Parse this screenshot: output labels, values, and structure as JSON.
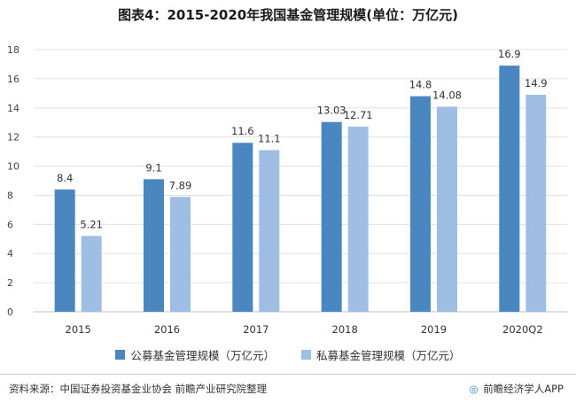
{
  "title": "图表4：2015-2020年我国基金管理规模(单位：万亿元)",
  "footer": {
    "source": "资料来源：中国证券投资基金业协会 前瞻产业研究院整理",
    "brand_logo": "◎",
    "brand": "前瞻经济学人APP"
  },
  "colors": {
    "public": "#4a86bf",
    "private": "#9ebfe3",
    "grid": "#e0e0e0",
    "axis": "#bfbfbf"
  },
  "chart_data": {
    "type": "bar",
    "title": "图表4：2015-2020年我国基金管理规模(单位：万亿元)",
    "categories": [
      "2015",
      "2016",
      "2017",
      "2018",
      "2019",
      "2020Q2"
    ],
    "series": [
      {
        "name": "公募基金管理规模（万亿元）",
        "values": [
          8.4,
          9.1,
          11.6,
          13.03,
          14.8,
          16.9
        ],
        "labels": [
          "8.4",
          "9.1",
          "11.6",
          "13.03",
          "14.8",
          "16.9"
        ]
      },
      {
        "name": "私募基金管理规模（万亿元）",
        "values": [
          5.21,
          7.89,
          11.1,
          12.71,
          14.08,
          14.9
        ],
        "labels": [
          "5.21",
          "7.89",
          "11.1",
          "12.71",
          "14.08",
          "14.9"
        ]
      }
    ],
    "ylim": [
      0,
      18
    ],
    "yticks": [
      0,
      2,
      4,
      6,
      8,
      10,
      12,
      14,
      16,
      18
    ],
    "xlabel": "",
    "ylabel": "",
    "grid": true,
    "legend_position": "bottom"
  }
}
